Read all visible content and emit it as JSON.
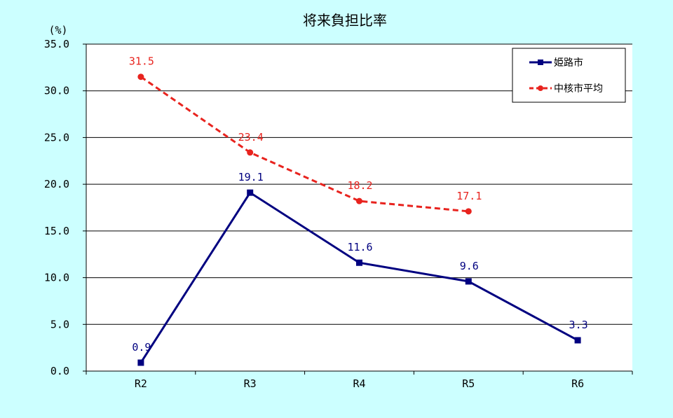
{
  "chart_data": {
    "type": "line",
    "title": "将来負担比率",
    "unit_label": "(%)",
    "categories": [
      "R2",
      "R3",
      "R4",
      "R5",
      "R6"
    ],
    "ylim": [
      0,
      35
    ],
    "yticks": [
      "0.0",
      "5.0",
      "10.0",
      "15.0",
      "20.0",
      "25.0",
      "30.0",
      "35.0"
    ],
    "grid": true,
    "legend_position": "top-right",
    "series": [
      {
        "name": "姫路市",
        "color": "#000080",
        "line_style": "solid",
        "marker": "square",
        "values": [
          0.9,
          19.1,
          11.6,
          9.6,
          3.3
        ],
        "labels": [
          "0.9",
          "19.1",
          "11.6",
          "9.6",
          "3.3"
        ]
      },
      {
        "name": "中核市平均",
        "color": "#e8231e",
        "line_style": "dashed",
        "marker": "circle",
        "values": [
          31.5,
          23.4,
          18.2,
          17.1,
          null
        ],
        "labels": [
          "31.5",
          "23.4",
          "18.2",
          "17.1",
          null
        ]
      }
    ]
  }
}
